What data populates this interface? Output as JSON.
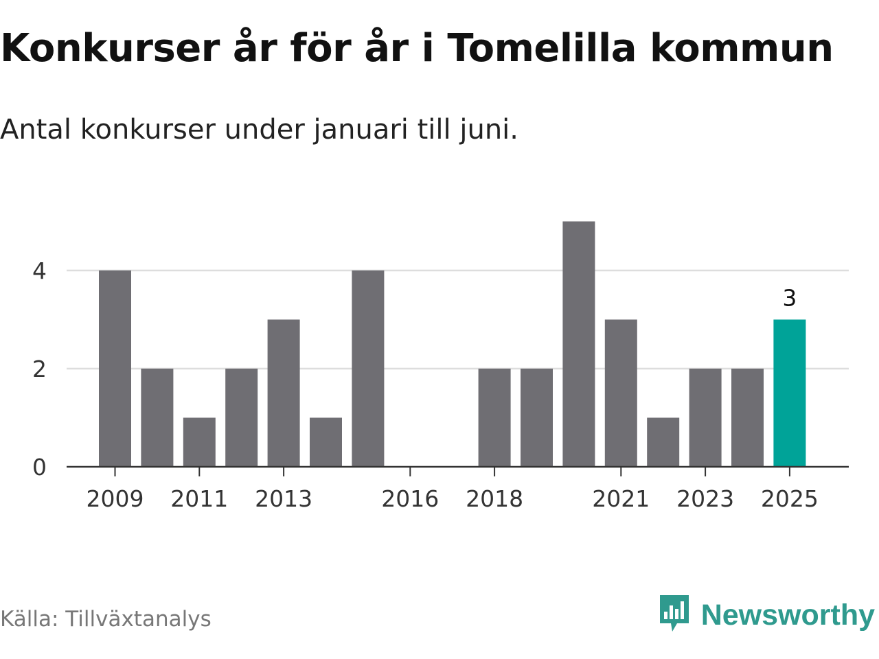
{
  "title": "Konkurser år för år i Tomelilla kommun",
  "subtitle": "Antal konkurser under januari till juni.",
  "source": "Källa: Tillväxtanalys",
  "brand": {
    "name": "Newsworthy",
    "icon": "newsworthy-logo-icon",
    "color": "#2f9a8e"
  },
  "colors": {
    "bar": "#6f6e73",
    "highlight": "#00a398",
    "grid": "#dddddd",
    "axis": "#333333"
  },
  "chart_data": {
    "type": "bar",
    "categories": [
      "2009",
      "2010",
      "2011",
      "2012",
      "2013",
      "2014",
      "2015",
      "2016",
      "2017",
      "2018",
      "2019",
      "2020",
      "2021",
      "2022",
      "2023",
      "2024",
      "2025"
    ],
    "values": [
      4,
      2,
      1,
      2,
      3,
      1,
      4,
      0,
      0,
      2,
      2,
      5,
      3,
      1,
      2,
      2,
      3
    ],
    "x_tick_labels": [
      "2009",
      "2011",
      "2013",
      "2016",
      "2018",
      "2021",
      "2023",
      "2025"
    ],
    "y_ticks": [
      0,
      2,
      4
    ],
    "ylim": [
      0,
      5
    ],
    "highlight": {
      "category": "2025",
      "label": "3"
    },
    "grid": true,
    "xlabel": "",
    "ylabel": ""
  }
}
